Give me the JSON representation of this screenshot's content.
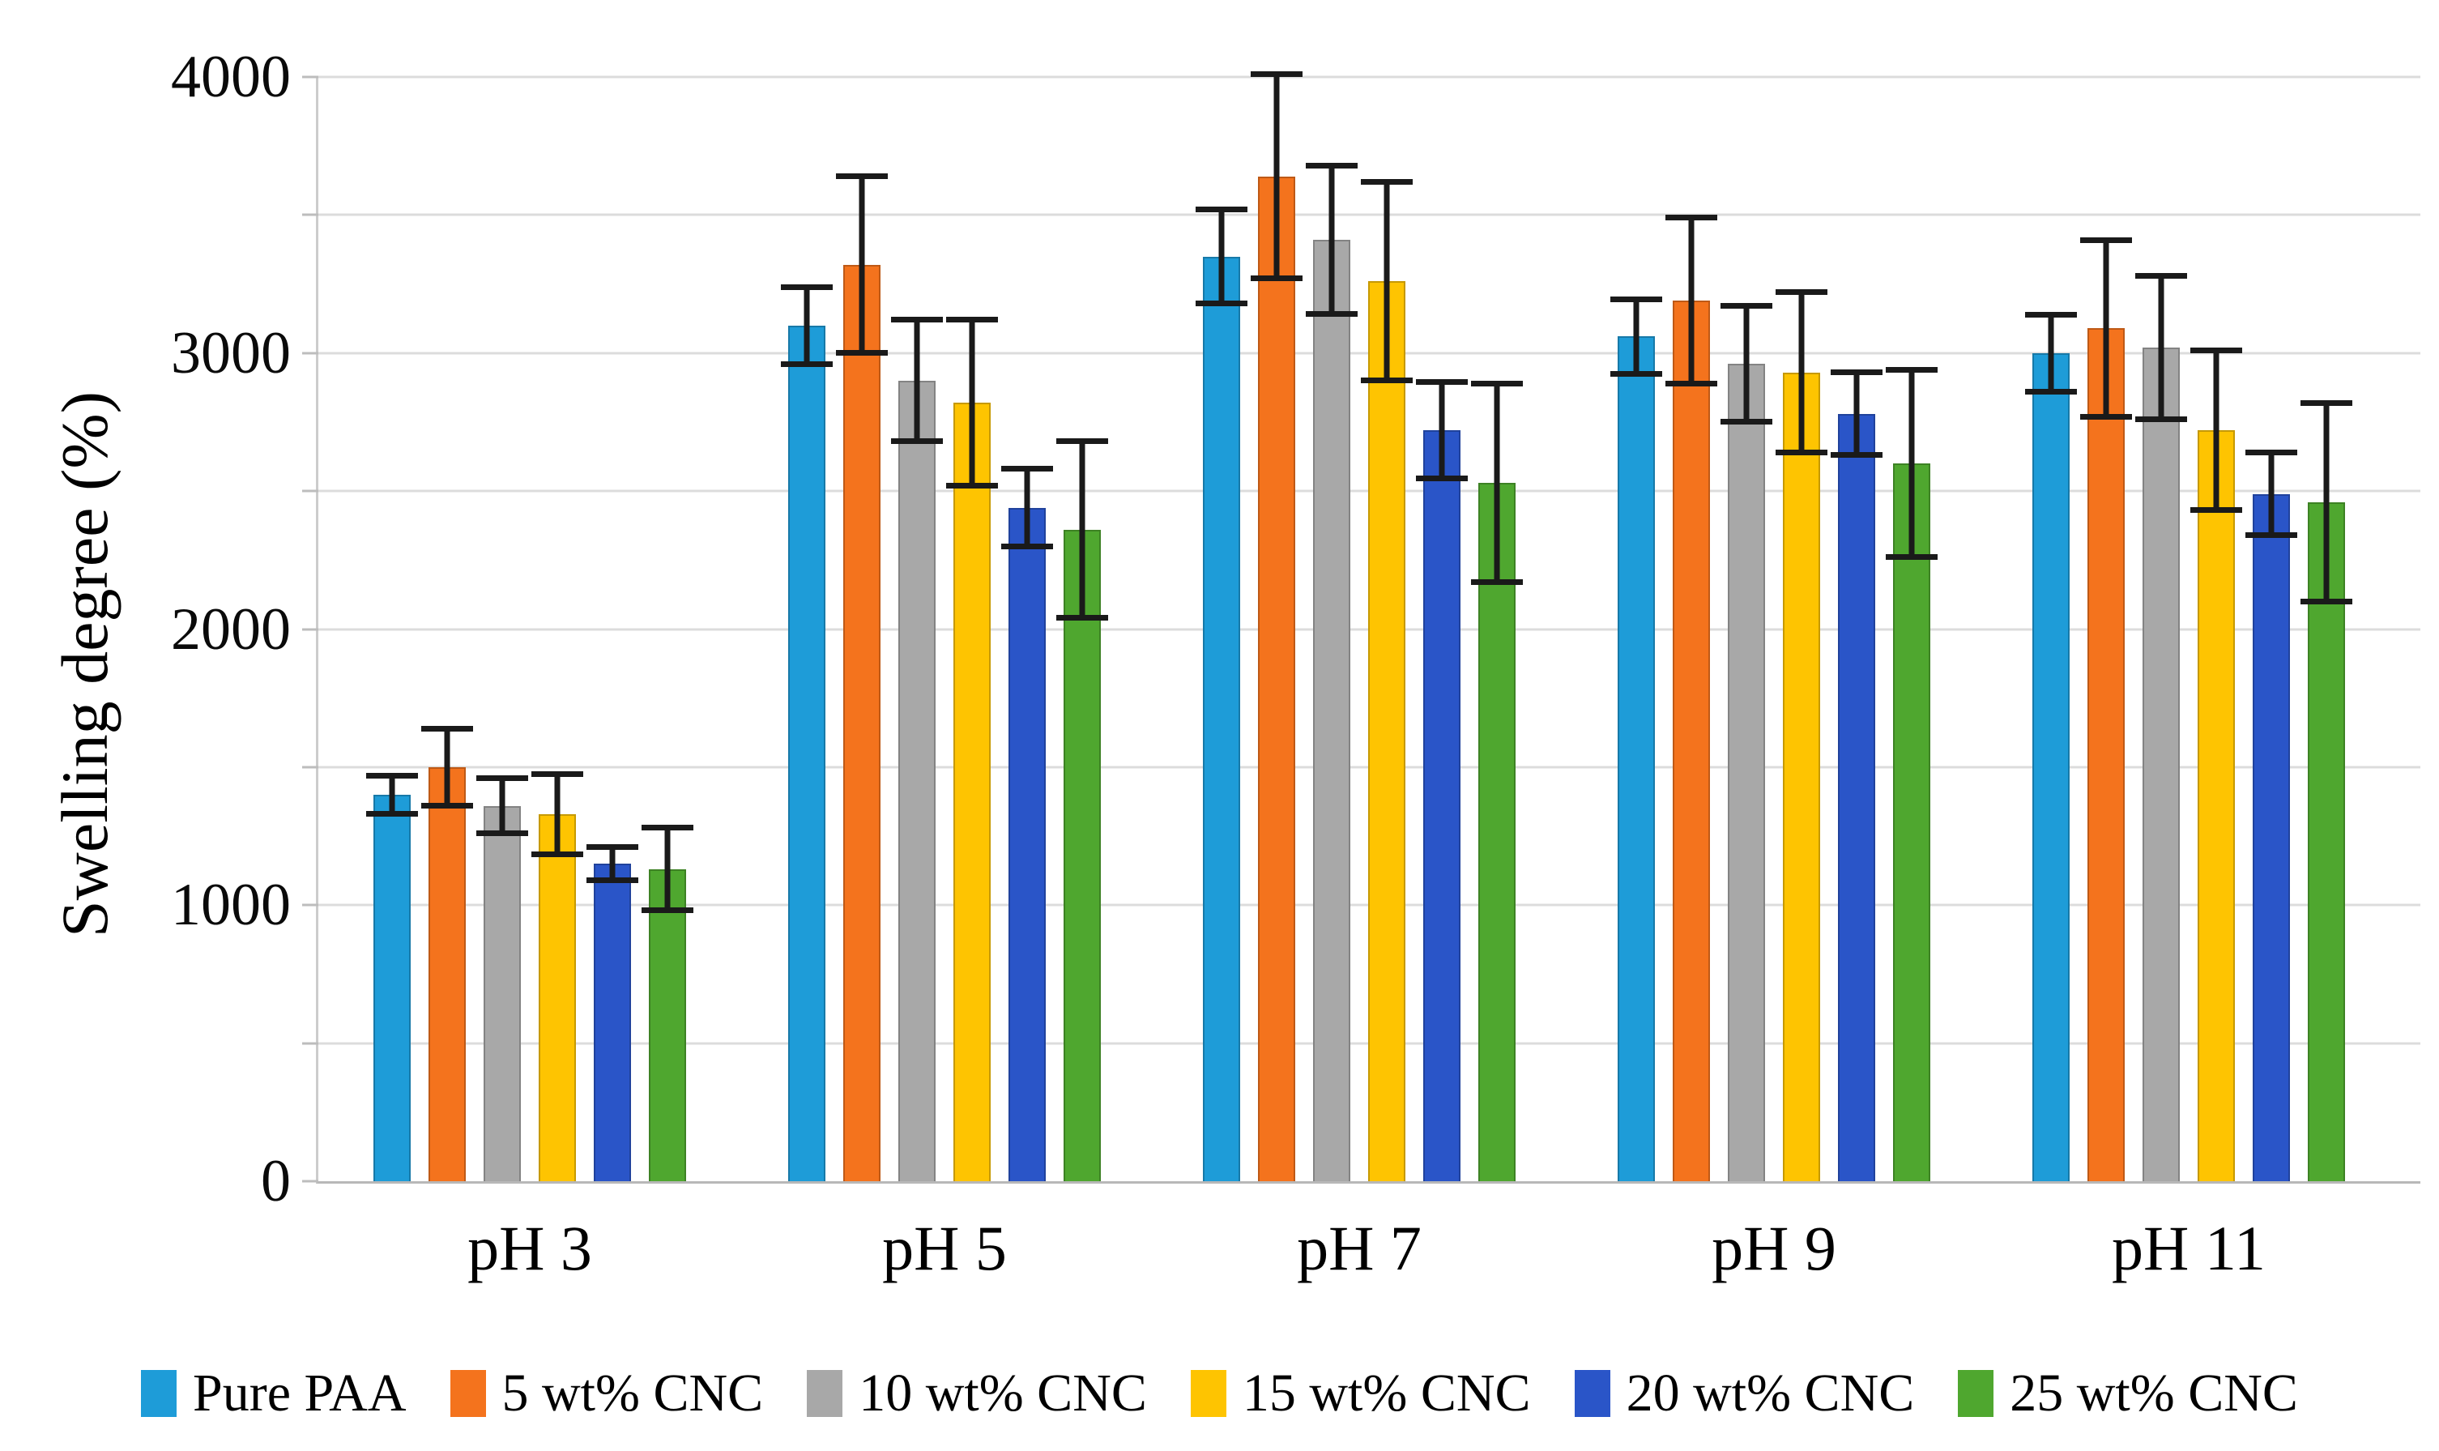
{
  "chart_data": {
    "type": "bar",
    "title": "",
    "ylabel": "Swelling degree (%)",
    "xlabel": "",
    "categories": [
      "pH 3",
      "pH 5",
      "pH 7",
      "pH 9",
      "pH 11"
    ],
    "series": [
      {
        "name": "Pure PAA",
        "color": "#1E9CD8",
        "values": [
          1400,
          3100,
          3350,
          3060,
          3000
        ],
        "errors": [
          80,
          150,
          180,
          145,
          150
        ]
      },
      {
        "name": "5 wt% CNC",
        "color": "#F4731D",
        "values": [
          1500,
          3320,
          3640,
          3190,
          3090
        ],
        "errors": [
          150,
          330,
          380,
          310,
          330
        ]
      },
      {
        "name": "10 wt% CNC",
        "color": "#A8A8A8",
        "values": [
          1360,
          2900,
          3410,
          2960,
          3020
        ],
        "errors": [
          110,
          230,
          280,
          220,
          270
        ]
      },
      {
        "name": "15 wt% CNC",
        "color": "#FEC401",
        "values": [
          1330,
          2820,
          3260,
          2930,
          2720
        ],
        "errors": [
          155,
          310,
          370,
          300,
          300
        ]
      },
      {
        "name": "20 wt% CNC",
        "color": "#2A55C8",
        "values": [
          1150,
          2440,
          2720,
          2780,
          2490
        ],
        "errors": [
          70,
          150,
          185,
          160,
          160
        ]
      },
      {
        "name": "25 wt% CNC",
        "color": "#4FA72F",
        "values": [
          1130,
          2360,
          2530,
          2600,
          2460
        ],
        "errors": [
          160,
          330,
          370,
          350,
          370
        ]
      }
    ],
    "ylim": [
      0,
      4000
    ],
    "ytick_minor_step": 500,
    "ytick_labeled": [
      0,
      1000,
      2000,
      3000,
      4000
    ],
    "grid": "horizontal-every-500",
    "legend_position": "bottom",
    "error_bar_color": "#1a1a1a"
  }
}
